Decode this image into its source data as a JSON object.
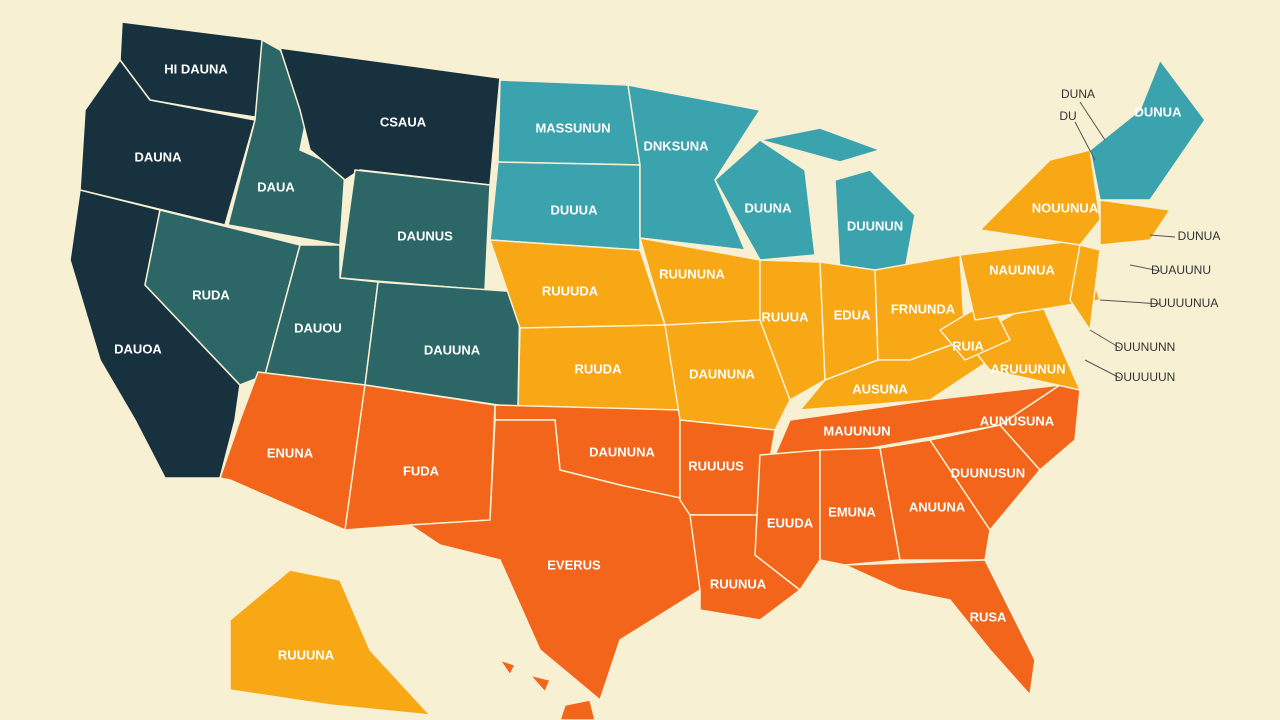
{
  "labels": [
    "HI DAUNA",
    "CSAUA",
    "DAUNA",
    "DAUA",
    "DAUNUS",
    "RUDA",
    "DAUOU",
    "DAUUNA",
    "DAUOA",
    "ENUNA",
    "FUDA",
    "EVERUS",
    "DAUNUNA",
    "RUUUDA",
    "RUUDA",
    "MASSUNUN",
    "DUUUA",
    "DNKSUNA",
    "RUUNUNA",
    "DAUNUNA",
    "RUUUUS",
    "RUUNUA",
    "DUUNA",
    "DUUNUN",
    "RUUUA",
    "EDUA",
    "FRNUNDA",
    "AUSUNA",
    "MAUUNUN",
    "EUUDA",
    "EMUNA",
    "ANUUNA",
    "RUSA",
    "AUNUSUNA",
    "DUUNUSUN",
    "ARUUUNUN",
    "RUIA",
    "NAUUNUA",
    "NOUUNUA",
    "DUNUA",
    "DUNA",
    "DU",
    "DUNUA",
    "DUAUUNU",
    "DUUUUNUA",
    "DUUNUNN",
    "DUUUUUN",
    "RUUUNA"
  ]
}
